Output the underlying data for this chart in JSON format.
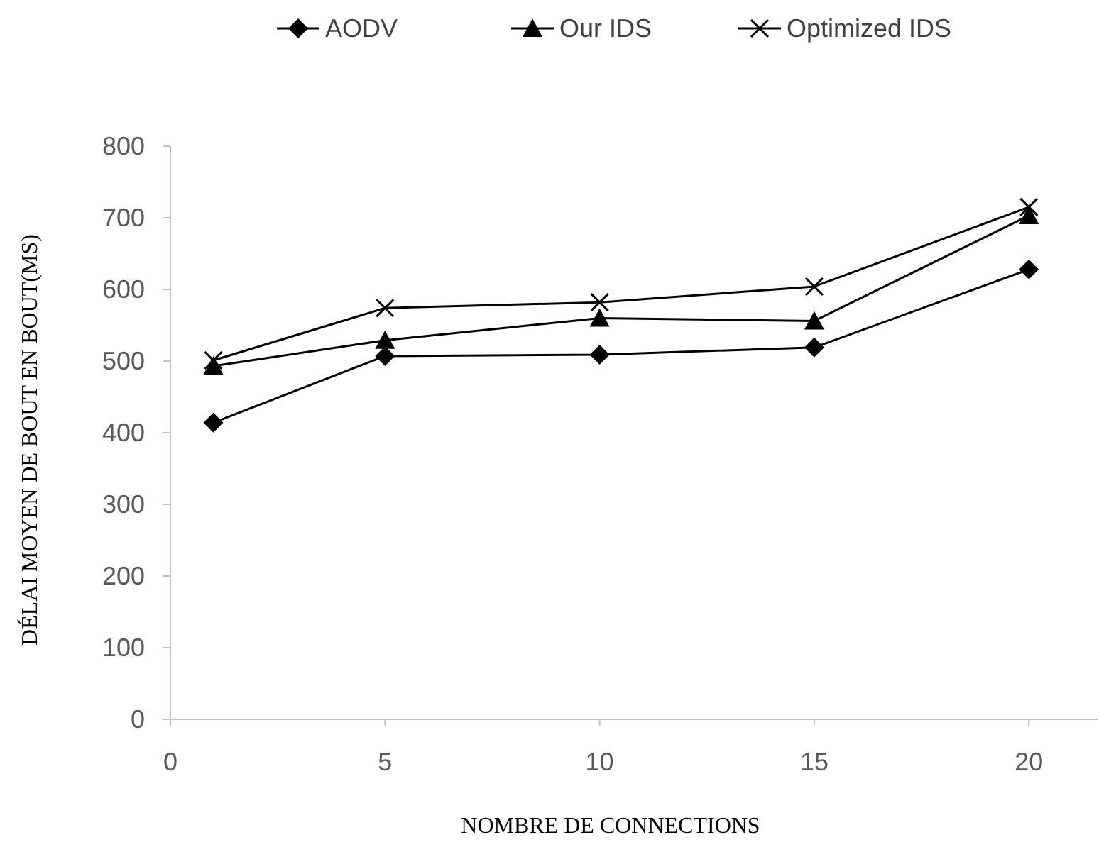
{
  "chart_data": {
    "type": "line",
    "xlabel": "NOMBRE DE CONNECTIONS",
    "ylabel": "DÉLAI MOYEN DE BOUT EN BOUT(MS)",
    "x": [
      1,
      5,
      10,
      15,
      20
    ],
    "series": [
      {
        "name": "AODV",
        "color": "#000000",
        "marker": "diamond",
        "values": [
          414,
          507,
          509,
          519,
          628
        ]
      },
      {
        "name": "Our IDS",
        "color": "#000000",
        "marker": "triangle",
        "values": [
          493,
          529,
          560,
          556,
          703
        ]
      },
      {
        "name": "Optimized IDS",
        "color": "#000000",
        "marker": "cross",
        "values": [
          501,
          574,
          582,
          604,
          715
        ]
      }
    ],
    "xlim": [
      0,
      21.6
    ],
    "xticks": [
      0,
      5,
      10,
      15,
      20
    ],
    "ylim": [
      0,
      800
    ],
    "yticks": [
      0,
      100,
      200,
      300,
      400,
      500,
      600,
      700,
      800
    ],
    "legend": "top",
    "grid": false,
    "line_style": "solid"
  }
}
